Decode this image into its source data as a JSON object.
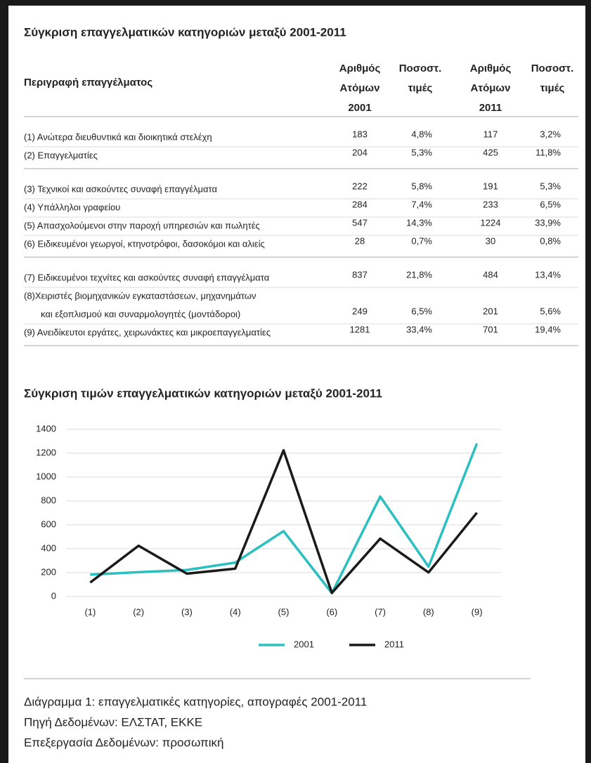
{
  "table": {
    "title": "Σύγκριση επαγγελματικών κατηγοριών μεταξύ 2001-2011",
    "header": [
      "Περιγραφή επαγγέλματος",
      [
        "Αριθμός",
        "Ατόμων",
        "2001"
      ],
      [
        "Ποσοστ.",
        "τιμές"
      ],
      [
        "Αριθμός",
        "Ατόμων",
        "2011"
      ],
      [
        "Ποσοστ.",
        "τιμές"
      ]
    ],
    "groups": [
      [
        [
          [
            "(1) Ανώτερα διευθυντικά και διοικητικά στελέχη"
          ],
          183,
          "4,8%",
          117,
          "3,2%"
        ],
        [
          [
            "(2) Επαγγελματίες"
          ],
          204,
          "5,3%",
          425,
          "11,8%"
        ]
      ],
      [
        [
          [
            "(3) Τεχνικοί και ασκούντες συναφή επαγγέλματα"
          ],
          222,
          "5,8%",
          191,
          "5,3%"
        ],
        [
          [
            "(4) Υπάλληλοι γραφείου"
          ],
          284,
          "7,4%",
          233,
          "6,5%"
        ],
        [
          [
            "(5) Απασχολούμενοι στην παροχή υπηρεσιών και πωλητές"
          ],
          547,
          "14,3%",
          1224,
          "33,9%"
        ],
        [
          [
            "(6) Ειδικευμένοι γεωργοί, κτηνοτρόφοι, δασοκόμοι και αλιείς"
          ],
          28,
          "0,7%",
          30,
          "0,8%"
        ]
      ],
      [
        [
          [
            "(7) Ειδικευμένοι τεχνίτες και ασκούντες συναφή επαγγέλματα"
          ],
          837,
          "21,8%",
          484,
          "13,4%"
        ],
        [
          [
            "(8)Χειριστές βιομηχανικών εγκαταστάσεων, μηχανημάτων",
            "και εξοπλισμού και συναρμολογητές (μοντάδοροι)"
          ],
          249,
          "6,5%",
          201,
          "5,6%"
        ],
        [
          [
            "(9) Ανειδίκευτοι εργάτες, χειρωνάκτες και μικροεπαγγελματίες"
          ],
          1281,
          "33,4%",
          701,
          "19,4%"
        ]
      ]
    ]
  },
  "chart_data": {
    "type": "line",
    "title": "Σύγκριση τιμών επαγγελματικών κατηγοριών μεταξύ 2001-2011",
    "categories": [
      "(1)",
      "(2)",
      "(3)",
      "(4)",
      "(5)",
      "(6)",
      "(7)",
      "(8)",
      "(9)"
    ],
    "series": [
      {
        "name": "2001",
        "color": "#2bbfbf",
        "values": [
          183,
          204,
          222,
          284,
          547,
          28,
          837,
          249,
          1281
        ]
      },
      {
        "name": "2011",
        "color": "#1a1a1a",
        "values": [
          117,
          425,
          191,
          233,
          1224,
          30,
          484,
          201,
          701
        ]
      }
    ],
    "ylim": [
      0,
      1400
    ],
    "yticks": [
      0,
      200,
      400,
      600,
      800,
      1000,
      1200,
      1400
    ],
    "grid": true,
    "legend": "bottom"
  },
  "footer": [
    "Διάγραμμα 1: επαγγελματικές κατηγορίες, απογραφές 2001-2011",
    "Πηγή Δεδομένων: ΕΛΣΤΑΤ, ΕΚΚΕ",
    "Επεξεργασία Δεδομένων: προσωπική"
  ]
}
